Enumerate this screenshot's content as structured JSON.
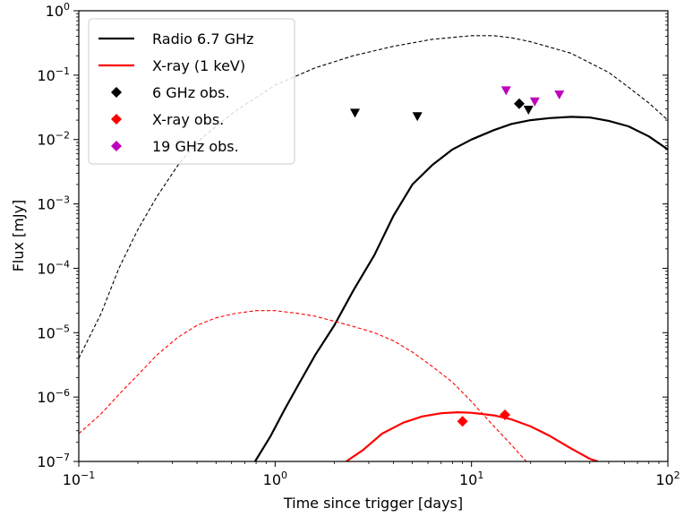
{
  "chart_data": {
    "type": "line",
    "xlabel": "Time since trigger [days]",
    "ylabel": "Flux [mJy]",
    "xscale": "log",
    "yscale": "log",
    "xlim": [
      0.1,
      100
    ],
    "ylim": [
      1e-07,
      1
    ],
    "x_ticks": [
      {
        "value": 0.1,
        "base": "10",
        "exp": "−1"
      },
      {
        "value": 1,
        "base": "10",
        "exp": "0"
      },
      {
        "value": 10,
        "base": "10",
        "exp": "1"
      },
      {
        "value": 100,
        "base": "10",
        "exp": "2"
      }
    ],
    "y_ticks": [
      {
        "value": 1e-07,
        "base": "10",
        "exp": "−7"
      },
      {
        "value": 1e-06,
        "base": "10",
        "exp": "−6"
      },
      {
        "value": 1e-05,
        "base": "10",
        "exp": "−5"
      },
      {
        "value": 0.0001,
        "base": "10",
        "exp": "−4"
      },
      {
        "value": 0.001,
        "base": "10",
        "exp": "−3"
      },
      {
        "value": 0.01,
        "base": "10",
        "exp": "−2"
      },
      {
        "value": 0.1,
        "base": "10",
        "exp": "−1"
      },
      {
        "value": 1,
        "base": "10",
        "exp": "0"
      }
    ],
    "legend": {
      "placement": "upper-left",
      "entries": [
        {
          "label": "Radio 6.7 GHz",
          "kind": "line",
          "color": "#000000"
        },
        {
          "label": "X-ray (1 keV)",
          "kind": "line",
          "color": "#ff0000"
        },
        {
          "label": "6 GHz obs.",
          "kind": "diamond",
          "color": "#000000"
        },
        {
          "label": "X-ray obs.",
          "kind": "diamond",
          "color": "#ff0000"
        },
        {
          "label": "19 GHz obs.",
          "kind": "diamond",
          "color": "#bf00bf"
        }
      ]
    },
    "series": [
      {
        "name": "Radio 6.7 GHz",
        "color": "#000000",
        "style": "solid",
        "points": [
          [
            0.79,
            1e-07
          ],
          [
            0.95,
            2.5e-07
          ],
          [
            1.12,
            6.5e-07
          ],
          [
            1.32,
            1.6e-06
          ],
          [
            1.6,
            4.5e-06
          ],
          [
            2.0,
            1.3e-05
          ],
          [
            2.5,
            4.5e-05
          ],
          [
            3.2,
            0.00016
          ],
          [
            4.0,
            0.00065
          ],
          [
            5.0,
            0.002
          ],
          [
            6.3,
            0.004
          ],
          [
            8.0,
            0.007
          ],
          [
            10,
            0.01
          ],
          [
            13,
            0.014
          ],
          [
            16,
            0.0175
          ],
          [
            20,
            0.02
          ],
          [
            25,
            0.0215
          ],
          [
            32,
            0.0225
          ],
          [
            40,
            0.022
          ],
          [
            50,
            0.0195
          ],
          [
            63,
            0.016
          ],
          [
            80,
            0.0112
          ],
          [
            100,
            0.007
          ]
        ]
      },
      {
        "name": "X-ray (1 keV)",
        "color": "#ff0000",
        "style": "solid",
        "points": [
          [
            2.3,
            1e-07
          ],
          [
            2.8,
            1.5e-07
          ],
          [
            3.5,
            2.7e-07
          ],
          [
            4.5,
            4e-07
          ],
          [
            5.6,
            5e-07
          ],
          [
            7.0,
            5.6e-07
          ],
          [
            8.5,
            5.8e-07
          ],
          [
            10,
            5.7e-07
          ],
          [
            13,
            5.2e-07
          ],
          [
            16,
            4.5e-07
          ],
          [
            20,
            3.5e-07
          ],
          [
            25,
            2.5e-07
          ],
          [
            32,
            1.6e-07
          ],
          [
            40,
            1.1e-07
          ],
          [
            44,
            1e-07
          ]
        ]
      },
      {
        "color": "#000000",
        "style": "dashed",
        "points": [
          [
            0.1,
            4e-06
          ],
          [
            0.13,
            2e-05
          ],
          [
            0.16,
            0.0001
          ],
          [
            0.2,
            0.0004
          ],
          [
            0.25,
            0.0013
          ],
          [
            0.32,
            0.004
          ],
          [
            0.4,
            0.009
          ],
          [
            0.5,
            0.016
          ],
          [
            0.63,
            0.028
          ],
          [
            0.8,
            0.045
          ],
          [
            1.0,
            0.07
          ],
          [
            1.6,
            0.13
          ],
          [
            2.5,
            0.2
          ],
          [
            4,
            0.28
          ],
          [
            6.3,
            0.36
          ],
          [
            10,
            0.41
          ],
          [
            13,
            0.41
          ],
          [
            16,
            0.38
          ],
          [
            20,
            0.33
          ],
          [
            32,
            0.22
          ],
          [
            50,
            0.11
          ],
          [
            63,
            0.065
          ],
          [
            80,
            0.037
          ],
          [
            100,
            0.02
          ]
        ]
      },
      {
        "color": "#ff0000",
        "style": "dashed",
        "points": [
          [
            0.1,
            2.7e-07
          ],
          [
            0.13,
            5.5e-07
          ],
          [
            0.16,
            1.1e-06
          ],
          [
            0.2,
            2.2e-06
          ],
          [
            0.25,
            4.5e-06
          ],
          [
            0.32,
            8.5e-06
          ],
          [
            0.4,
            1.3e-05
          ],
          [
            0.5,
            1.7e-05
          ],
          [
            0.63,
            2e-05
          ],
          [
            0.8,
            2.2e-05
          ],
          [
            1.0,
            2.2e-05
          ],
          [
            1.3,
            2e-05
          ],
          [
            1.6,
            1.8e-05
          ],
          [
            2.0,
            1.5e-05
          ],
          [
            2.5,
            1.25e-05
          ],
          [
            3.2,
            1e-05
          ],
          [
            4.0,
            7.5e-06
          ],
          [
            5.0,
            5e-06
          ],
          [
            6.3,
            3e-06
          ],
          [
            8.0,
            1.7e-06
          ],
          [
            10,
            8.5e-07
          ],
          [
            12.5,
            4e-07
          ],
          [
            16,
            1.8e-07
          ],
          [
            19,
            1e-07
          ]
        ]
      }
    ],
    "upper_limits": [
      {
        "color": "#000000",
        "points": [
          [
            2.55,
            0.026
          ],
          [
            5.3,
            0.023
          ],
          [
            19.5,
            0.029
          ]
        ]
      },
      {
        "color": "#bf00bf",
        "points": [
          [
            15,
            0.058
          ],
          [
            21,
            0.039
          ],
          [
            28,
            0.05
          ]
        ]
      }
    ],
    "detections": [
      {
        "color": "#000000",
        "points": [
          [
            17.5,
            0.036
          ]
        ]
      },
      {
        "color": "#ff0000",
        "points": [
          [
            9.0,
            4.2e-07
          ],
          [
            14.8,
            5.3e-07
          ]
        ]
      }
    ]
  }
}
